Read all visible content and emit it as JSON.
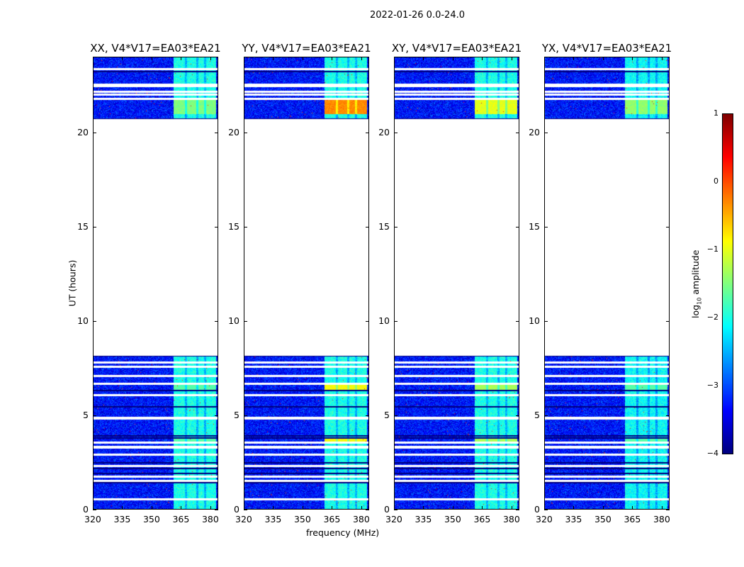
{
  "chart_data": {
    "type": "heatmap",
    "title": "2022-01-26 0.0-24.0",
    "xlabel": "frequency (MHz)",
    "ylabel": "UT (hours)",
    "xlim": [
      320,
      384
    ],
    "ylim": [
      0,
      24
    ],
    "xticks": [
      320,
      335,
      350,
      365,
      380
    ],
    "yticks": [
      0,
      5,
      10,
      15,
      20
    ],
    "panels": [
      {
        "title": "XX, V4*V17=EA03*EA21",
        "band_level": -2.0,
        "top_burst_level": -1.5,
        "low_burst_level": -1.7
      },
      {
        "title": "YY, V4*V17=EA03*EA21",
        "band_level": -2.0,
        "top_burst_level": -0.3,
        "low_burst_level": -0.9
      },
      {
        "title": "XY, V4*V17=EA03*EA21",
        "band_level": -2.0,
        "top_burst_level": -1.0,
        "low_burst_level": -1.3
      },
      {
        "title": "YX, V4*V17=EA03*EA21",
        "band_level": -2.1,
        "top_burst_level": -1.4,
        "low_burst_level": -1.7
      }
    ],
    "background_level": -3.3,
    "band_range_mhz": [
      361,
      383
    ],
    "band_gaps_mhz": [
      367.5,
      373.5,
      377.5
    ],
    "data_time_ranges": [
      [
        0,
        8.15
      ],
      [
        20.75,
        24
      ]
    ],
    "burst_time_ranges": [
      [
        21.0,
        21.75
      ],
      [
        6.3,
        6.68
      ],
      [
        3.5,
        3.8
      ]
    ],
    "flagged_times_white": [
      0.53,
      1.5,
      1.73,
      2.29,
      2.89,
      3.3,
      3.53,
      4.84,
      6.08,
      6.68,
      7.09,
      7.58,
      7.8,
      21.8,
      22.03,
      22.2,
      22.48,
      22.55,
      23.4
    ],
    "dark_row_times": [
      1.4,
      1.9,
      2.18,
      2.47,
      3.8,
      3.9,
      5.44,
      6.3,
      8.15,
      20.75,
      21.85,
      23.26
    ],
    "colorbar": {
      "label": "log",
      "label_sub": "10",
      "label_suffix": " amplitude",
      "range": [
        -4,
        1
      ],
      "ticks": [
        1,
        0,
        -1,
        -2,
        -3,
        -4
      ],
      "tick_labels": [
        "1",
        "0",
        "−1",
        "−2",
        "−3",
        "−4"
      ],
      "colormap": "jet"
    }
  }
}
